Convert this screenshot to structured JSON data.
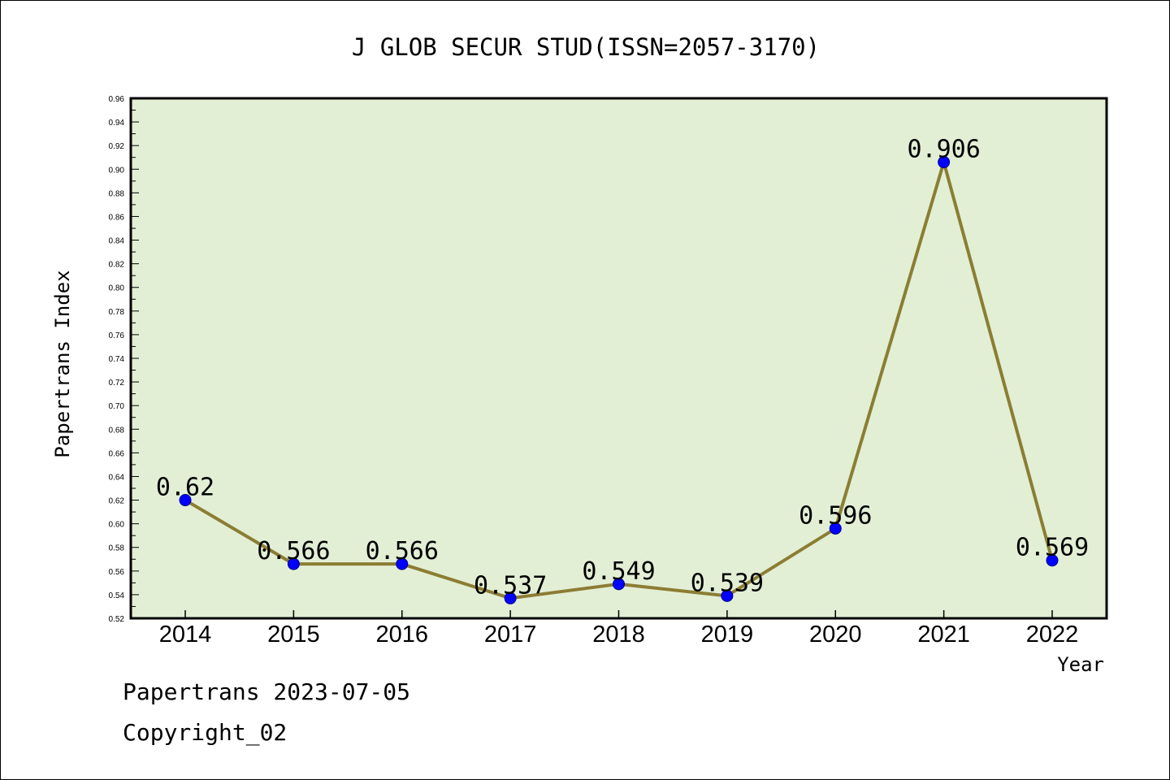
{
  "chart_data": {
    "type": "line",
    "title": "J GLOB SECUR STUD(ISSN=2057-3170)",
    "xlabel": "Year",
    "ylabel": "Papertrans Index",
    "categories": [
      "2014",
      "2015",
      "2016",
      "2017",
      "2018",
      "2019",
      "2020",
      "2021",
      "2022"
    ],
    "values": [
      0.62,
      0.566,
      0.566,
      0.537,
      0.549,
      0.539,
      0.596,
      0.906,
      0.569
    ],
    "data_labels": [
      "0.62",
      "0.566",
      "0.566",
      "0.537",
      "0.549",
      "0.539",
      "0.596",
      "0.906",
      "0.569"
    ],
    "ylim": [
      0.52,
      0.96
    ],
    "yticks": [
      "0.52",
      "0.54",
      "0.56",
      "0.58",
      "0.60",
      "0.62",
      "0.64",
      "0.66",
      "0.68",
      "0.70",
      "0.72",
      "0.74",
      "0.76",
      "0.78",
      "0.80",
      "0.82",
      "0.84",
      "0.86",
      "0.88",
      "0.90",
      "0.92",
      "0.94",
      "0.96"
    ],
    "grid": false,
    "colors": {
      "plot_background": "#e2efd5",
      "line": "#8b7d33",
      "marker": "#0000ff",
      "axis": "#000000"
    }
  },
  "footer": {
    "line1": "Papertrans 2023-07-05",
    "line2": "Copyright_02"
  }
}
